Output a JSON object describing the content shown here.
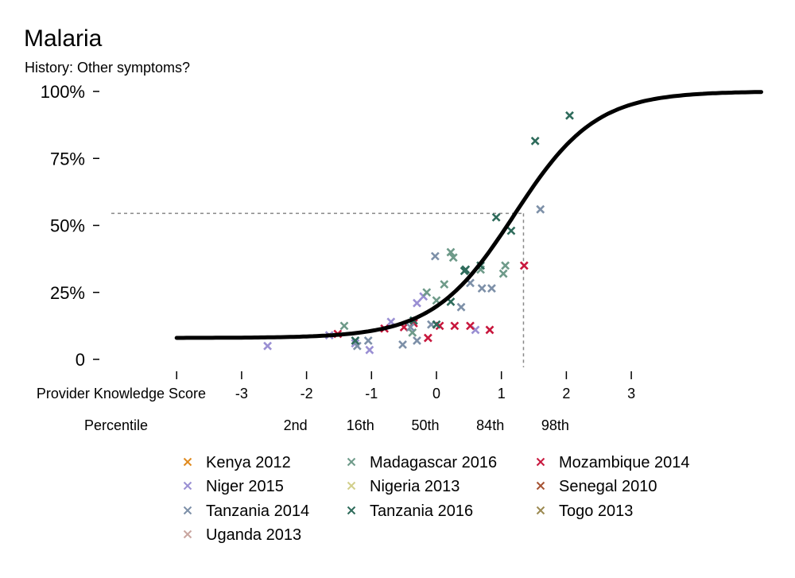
{
  "chart_data": {
    "type": "scatter",
    "title": "Malaria",
    "subtitle": "History: Other symptoms?",
    "x_axis": {
      "label": "Provider Knowledge Score",
      "range": [
        -4,
        5
      ],
      "ticks": [
        -3,
        -2,
        -1,
        0,
        1,
        2,
        3
      ],
      "tick_labels": [
        "-3",
        "-2",
        "-1",
        "0",
        "1",
        "2",
        "3"
      ]
    },
    "percentile_axis": {
      "label": "Percentile",
      "ticks": [
        -2,
        -1,
        0,
        1,
        2
      ],
      "tick_labels": [
        "2nd",
        "16th",
        "50th",
        "84th",
        "98th"
      ]
    },
    "y_axis": {
      "range": [
        0,
        1
      ],
      "ticks": [
        0,
        0.25,
        0.5,
        0.75,
        1.0
      ],
      "tick_labels": [
        "0",
        "25%",
        "50%",
        "75%",
        "100%"
      ]
    },
    "fit_curve": {
      "floor": 0.08,
      "ceiling": 1.0,
      "midpoint": 1.2,
      "slope": 1.6
    },
    "reference": {
      "x": 1.34,
      "y": 0.545
    },
    "legend_position": "bottom",
    "legend": [
      {
        "name": "Kenya 2012",
        "color": "#e08a1e"
      },
      {
        "name": "Madagascar 2016",
        "color": "#6e9a89"
      },
      {
        "name": "Mozambique 2014",
        "color": "#c8173d"
      },
      {
        "name": "Niger 2015",
        "color": "#9a8fd3"
      },
      {
        "name": "Nigeria 2013",
        "color": "#d2cf8b"
      },
      {
        "name": "Senegal 2010",
        "color": "#a65333"
      },
      {
        "name": "Tanzania 2014",
        "color": "#7d90a8"
      },
      {
        "name": "Tanzania 2016",
        "color": "#2e6b5b"
      },
      {
        "name": "Togo 2013",
        "color": "#9c8a52"
      },
      {
        "name": "Uganda 2013",
        "color": "#c9a6a0"
      }
    ],
    "series": [
      {
        "name": "Niger 2015",
        "color": "#9a8fd3",
        "points": [
          [
            -2.6,
            0.05
          ],
          [
            -1.65,
            0.09
          ],
          [
            -1.25,
            0.06
          ],
          [
            -1.03,
            0.035
          ],
          [
            -0.7,
            0.14
          ],
          [
            -0.3,
            0.21
          ],
          [
            -0.2,
            0.235
          ],
          [
            0.6,
            0.11
          ]
        ]
      },
      {
        "name": "Madagascar 2016",
        "color": "#6e9a89",
        "points": [
          [
            -1.42,
            0.125
          ],
          [
            -0.37,
            0.1
          ],
          [
            -0.15,
            0.25
          ],
          [
            0.0,
            0.22
          ],
          [
            0.12,
            0.28
          ],
          [
            0.22,
            0.4
          ],
          [
            0.26,
            0.38
          ],
          [
            0.68,
            0.335
          ],
          [
            1.03,
            0.32
          ],
          [
            1.06,
            0.35
          ]
        ]
      },
      {
        "name": "Mozambique 2014",
        "color": "#c8173d",
        "points": [
          [
            -1.52,
            0.095
          ],
          [
            -0.8,
            0.115
          ],
          [
            -0.5,
            0.12
          ],
          [
            -0.35,
            0.135
          ],
          [
            -0.13,
            0.08
          ],
          [
            0.05,
            0.125
          ],
          [
            0.28,
            0.125
          ],
          [
            0.52,
            0.125
          ],
          [
            0.82,
            0.11
          ],
          [
            1.35,
            0.35
          ]
        ]
      },
      {
        "name": "Tanzania 2014",
        "color": "#7d90a8",
        "points": [
          [
            -1.22,
            0.05
          ],
          [
            -1.05,
            0.07
          ],
          [
            -0.52,
            0.055
          ],
          [
            -0.4,
            0.12
          ],
          [
            -0.3,
            0.07
          ],
          [
            -0.08,
            0.13
          ],
          [
            -0.02,
            0.385
          ],
          [
            0.38,
            0.195
          ],
          [
            0.52,
            0.285
          ],
          [
            0.7,
            0.265
          ],
          [
            0.85,
            0.265
          ],
          [
            1.6,
            0.56
          ]
        ]
      },
      {
        "name": "Tanzania 2016",
        "color": "#2e6b5b",
        "points": [
          [
            -1.25,
            0.07
          ],
          [
            -0.35,
            0.145
          ],
          [
            0.0,
            0.13
          ],
          [
            0.22,
            0.215
          ],
          [
            0.43,
            0.33
          ],
          [
            0.45,
            0.335
          ],
          [
            0.68,
            0.35
          ],
          [
            0.92,
            0.53
          ],
          [
            1.15,
            0.48
          ],
          [
            1.52,
            0.815
          ],
          [
            2.05,
            0.91
          ]
        ]
      }
    ]
  }
}
